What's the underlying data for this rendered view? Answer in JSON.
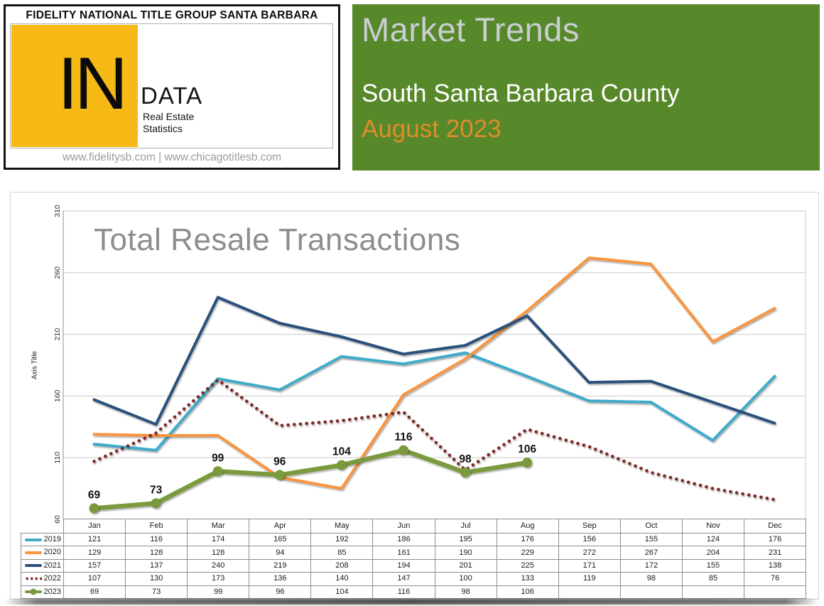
{
  "header": {
    "brand": {
      "title": "FIDELITY NATIONAL TITLE GROUP SANTA BARBARA",
      "logo_in": "IN",
      "logo_data": "DATA",
      "logo_sub1": "Real Estate",
      "logo_sub2": "Statistics",
      "websites": "www.fidelitysb.com | www.chicagotitlesb.com",
      "logo_orange": "#F6B915"
    },
    "banner": {
      "title": "Market Trends",
      "subtitle": "South Santa Barbara County",
      "period": "August 2023",
      "bg_color": "#578829",
      "title_color": "#C9CED3",
      "subtitle_color": "#FFFFFF",
      "period_color": "#DE8D2A"
    }
  },
  "chart_data": {
    "type": "line",
    "title": "Total Resale Transactions",
    "ylabel": "Axis Title",
    "x_categories": [
      "Jan",
      "Feb",
      "Mar",
      "Apr",
      "May",
      "Jun",
      "Jul",
      "Aug",
      "Sep",
      "Oct",
      "Nov",
      "Dec"
    ],
    "ylim": [
      60,
      310
    ],
    "yticks": [
      60,
      110,
      160,
      210,
      260,
      310
    ],
    "grid": "horizontal",
    "legend_position": "table-left",
    "series": [
      {
        "name": "2019",
        "color": "#3FABC8",
        "style": "solid",
        "values": [
          121,
          116,
          174,
          165,
          192,
          186,
          195,
          176,
          156,
          155,
          124,
          176
        ]
      },
      {
        "name": "2020",
        "color": "#F8953F",
        "style": "solid",
        "values": [
          129,
          128,
          128,
          94,
          85,
          161,
          190,
          229,
          272,
          267,
          204,
          231
        ]
      },
      {
        "name": "2021",
        "color": "#2A517B",
        "style": "solid",
        "values": [
          157,
          137,
          240,
          219,
          208,
          194,
          201,
          225,
          171,
          172,
          155,
          138
        ]
      },
      {
        "name": "2022",
        "color": "#7C2B25",
        "style": "dotted",
        "values": [
          107,
          130,
          173,
          136,
          140,
          147,
          100,
          133,
          119,
          98,
          85,
          76
        ]
      },
      {
        "name": "2023",
        "color": "#7A9A3E",
        "style": "solid-marker",
        "show_labels": true,
        "values": [
          69,
          73,
          99,
          96,
          104,
          116,
          98,
          106,
          null,
          null,
          null,
          null
        ]
      }
    ]
  }
}
